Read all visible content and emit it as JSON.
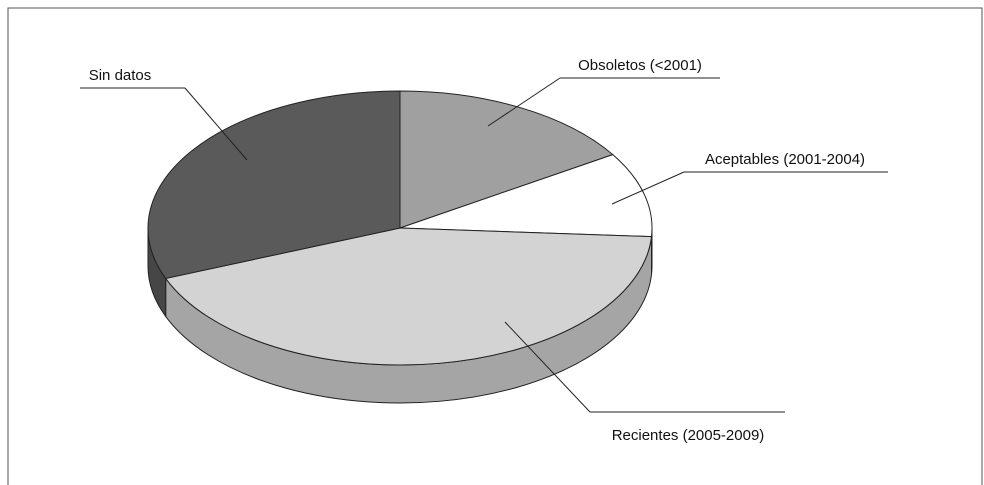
{
  "chart_data": {
    "type": "pie3d",
    "categories": [
      "Obsoletos (<2001)",
      "Aceptables (2001-2004)",
      "Recientes (2005-2009)",
      "Sin datos"
    ],
    "values": [
      16,
      10,
      43,
      31
    ],
    "colors": [
      "#a0a0a0",
      "#ffffff",
      "#d3d3d3",
      "#5a5a5a"
    ]
  }
}
